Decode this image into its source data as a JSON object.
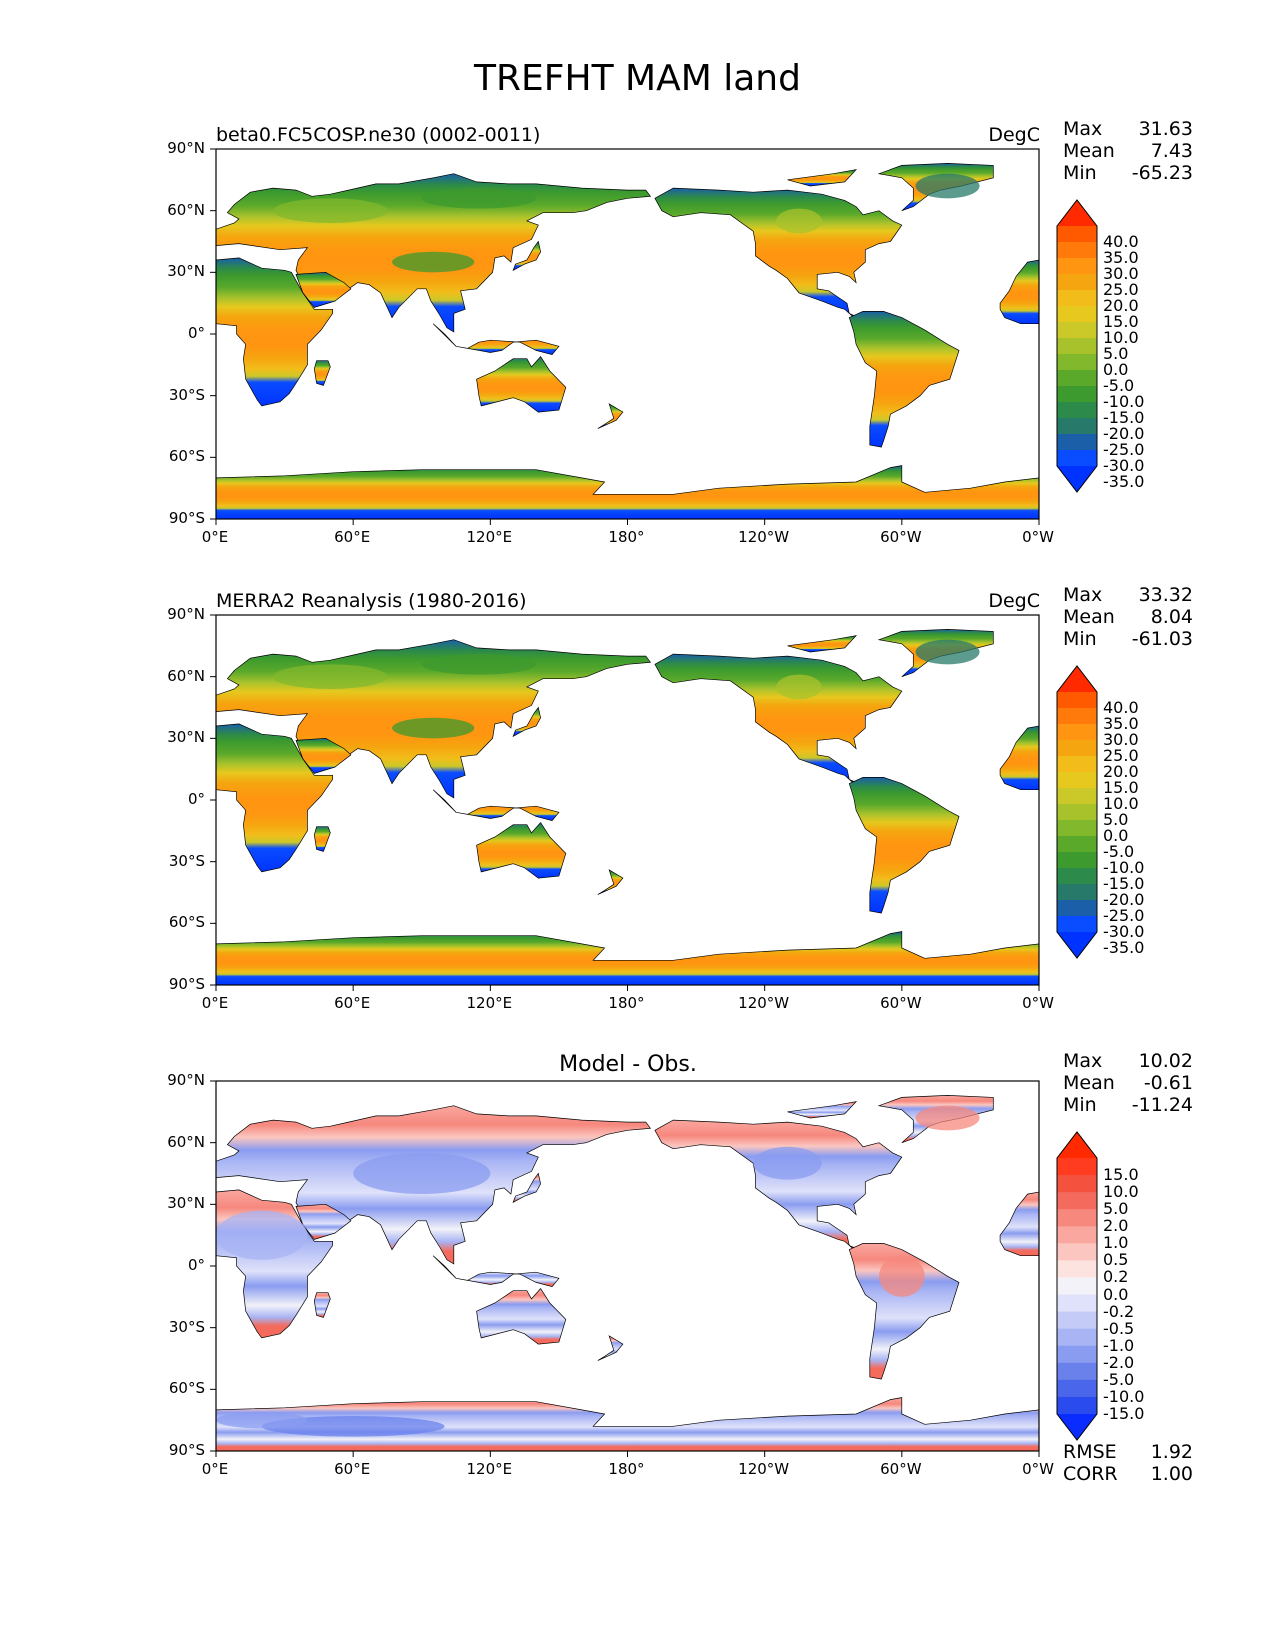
{
  "figure_title": "TREFHT MAM land",
  "axes": {
    "y_ticks": [
      "90°N",
      "60°N",
      "30°N",
      "0°",
      "30°S",
      "60°S",
      "90°S"
    ],
    "x_ticks": [
      "0°E",
      "60°E",
      "120°E",
      "180°",
      "120°W",
      "60°W",
      "0°W"
    ]
  },
  "panels": [
    {
      "title": "beta0.FC5COSP.ne30 (0002-0011)",
      "title_align": "left",
      "units": "DegC",
      "stats": {
        "max_label": "Max",
        "max": "31.63",
        "mean_label": "Mean",
        "mean": "7.43",
        "min_label": "Min",
        "min": "-65.23"
      },
      "colorbar": {
        "labels": [
          "40.0",
          "35.0",
          "30.0",
          "25.0",
          "20.0",
          "15.0",
          "10.0",
          "5.0",
          "0.0",
          "-5.0",
          "-10.0",
          "-15.0",
          "-20.0",
          "-25.0",
          "-30.0",
          "-35.0"
        ],
        "colors": [
          "#ff2a00",
          "#ff5a00",
          "#ff7a0a",
          "#ff9510",
          "#f5a50f",
          "#f2bd1a",
          "#e6c81e",
          "#cbc82a",
          "#a8c22c",
          "#82b82c",
          "#5aa92b",
          "#3d9a2e",
          "#2c8a4a",
          "#277a6a",
          "#1a5fa8",
          "#0a4cff",
          "#0033ff"
        ]
      },
      "field": "temperature"
    },
    {
      "title": "MERRA2 Reanalysis (1980-2016)",
      "title_align": "left",
      "units": "DegC",
      "stats": {
        "max_label": "Max",
        "max": "33.32",
        "mean_label": "Mean",
        "mean": "8.04",
        "min_label": "Min",
        "min": "-61.03"
      },
      "colorbar": {
        "labels": [
          "40.0",
          "35.0",
          "30.0",
          "25.0",
          "20.0",
          "15.0",
          "10.0",
          "5.0",
          "0.0",
          "-5.0",
          "-10.0",
          "-15.0",
          "-20.0",
          "-25.0",
          "-30.0",
          "-35.0"
        ],
        "colors": [
          "#ff2a00",
          "#ff5a00",
          "#ff7a0a",
          "#ff9510",
          "#f5a50f",
          "#f2bd1a",
          "#e6c81e",
          "#cbc82a",
          "#a8c22c",
          "#82b82c",
          "#5aa92b",
          "#3d9a2e",
          "#2c8a4a",
          "#277a6a",
          "#1a5fa8",
          "#0a4cff",
          "#0033ff"
        ]
      },
      "field": "temperature"
    },
    {
      "title": "Model - Obs.",
      "title_align": "center",
      "units": "",
      "stats": {
        "max_label": "Max",
        "max": "10.02",
        "mean_label": "Mean",
        "mean": "-0.61",
        "min_label": "Min",
        "min": "-11.24"
      },
      "colorbar": {
        "labels": [
          "15.0",
          "10.0",
          "5.0",
          "2.0",
          "1.0",
          "0.5",
          "0.2",
          "0.0",
          "-0.2",
          "-0.5",
          "-1.0",
          "-2.0",
          "-5.0",
          "-10.0",
          "-15.0"
        ],
        "colors": [
          "#ff2a00",
          "#ff3b20",
          "#f4513f",
          "#f46a5c",
          "#f6887e",
          "#f9a79f",
          "#fbc6c0",
          "#fde3e0",
          "#f2f2f8",
          "#dfe2fa",
          "#c4cbf7",
          "#a8b4f4",
          "#8a9cf0",
          "#6a81ec",
          "#4a66ea",
          "#2a4cef",
          "#0a2cff"
        ]
      },
      "metrics": {
        "rmse_label": "RMSE",
        "rmse": "1.92",
        "corr_label": "CORR",
        "corr": "1.00"
      },
      "field": "difference"
    }
  ]
}
